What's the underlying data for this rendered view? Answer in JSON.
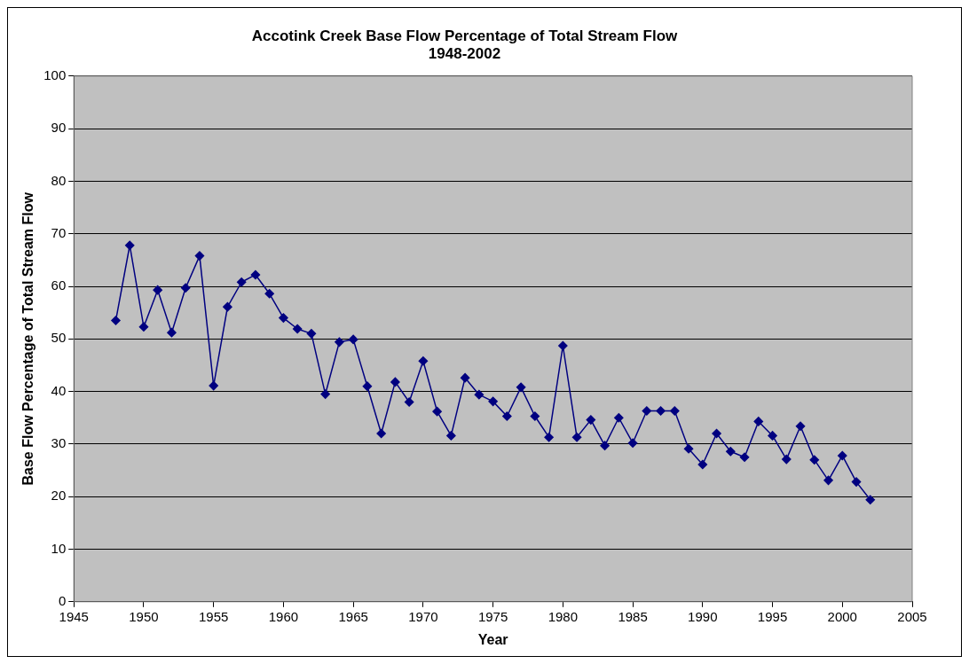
{
  "chart_data": {
    "type": "line",
    "title": "Accotink Creek Base Flow Percentage of Total Stream Flow\n1948-2002",
    "xlabel": "Year",
    "ylabel": "Base Flow Percentage of Total Stream Flow",
    "x": [
      1948,
      1949,
      1950,
      1951,
      1952,
      1953,
      1954,
      1955,
      1956,
      1957,
      1958,
      1959,
      1960,
      1961,
      1962,
      1963,
      1964,
      1965,
      1966,
      1967,
      1968,
      1969,
      1970,
      1971,
      1972,
      1973,
      1974,
      1975,
      1976,
      1977,
      1978,
      1979,
      1980,
      1981,
      1982,
      1983,
      1984,
      1985,
      1986,
      1987,
      1988,
      1989,
      1990,
      1991,
      1992,
      1993,
      1994,
      1995,
      1996,
      1997,
      1998,
      1999,
      2000,
      2001,
      2002
    ],
    "series": [
      {
        "color": "#000080",
        "values": [
          53.5,
          67.8,
          52.3,
          59.3,
          51.2,
          59.7,
          65.8,
          41.1,
          56.1,
          60.8,
          62.2,
          58.6,
          54.0,
          51.9,
          51.0,
          39.5,
          49.4,
          49.9,
          41.0,
          32.0,
          41.8,
          38.0,
          45.8,
          36.2,
          31.6,
          42.6,
          39.4,
          38.1,
          35.3,
          40.8,
          35.3,
          31.3,
          48.7,
          31.3,
          34.6,
          29.7,
          35.0,
          30.2,
          36.3,
          36.3,
          36.3,
          29.1,
          26.1,
          32.0,
          28.6,
          27.5,
          34.3,
          31.6,
          27.1,
          33.4,
          27.0,
          23.1,
          27.8,
          22.8,
          19.4
        ]
      }
    ],
    "xlim": [
      1945,
      2005
    ],
    "xticks": [
      1945,
      1950,
      1955,
      1960,
      1965,
      1970,
      1975,
      1980,
      1985,
      1990,
      1995,
      2000,
      2005
    ],
    "ylim": [
      0,
      100
    ],
    "yticks": [
      0,
      10,
      20,
      30,
      40,
      50,
      60,
      70,
      80,
      90,
      100
    ],
    "grid": "y",
    "legend": false,
    "marker": "diamond",
    "line_style": "solid"
  }
}
